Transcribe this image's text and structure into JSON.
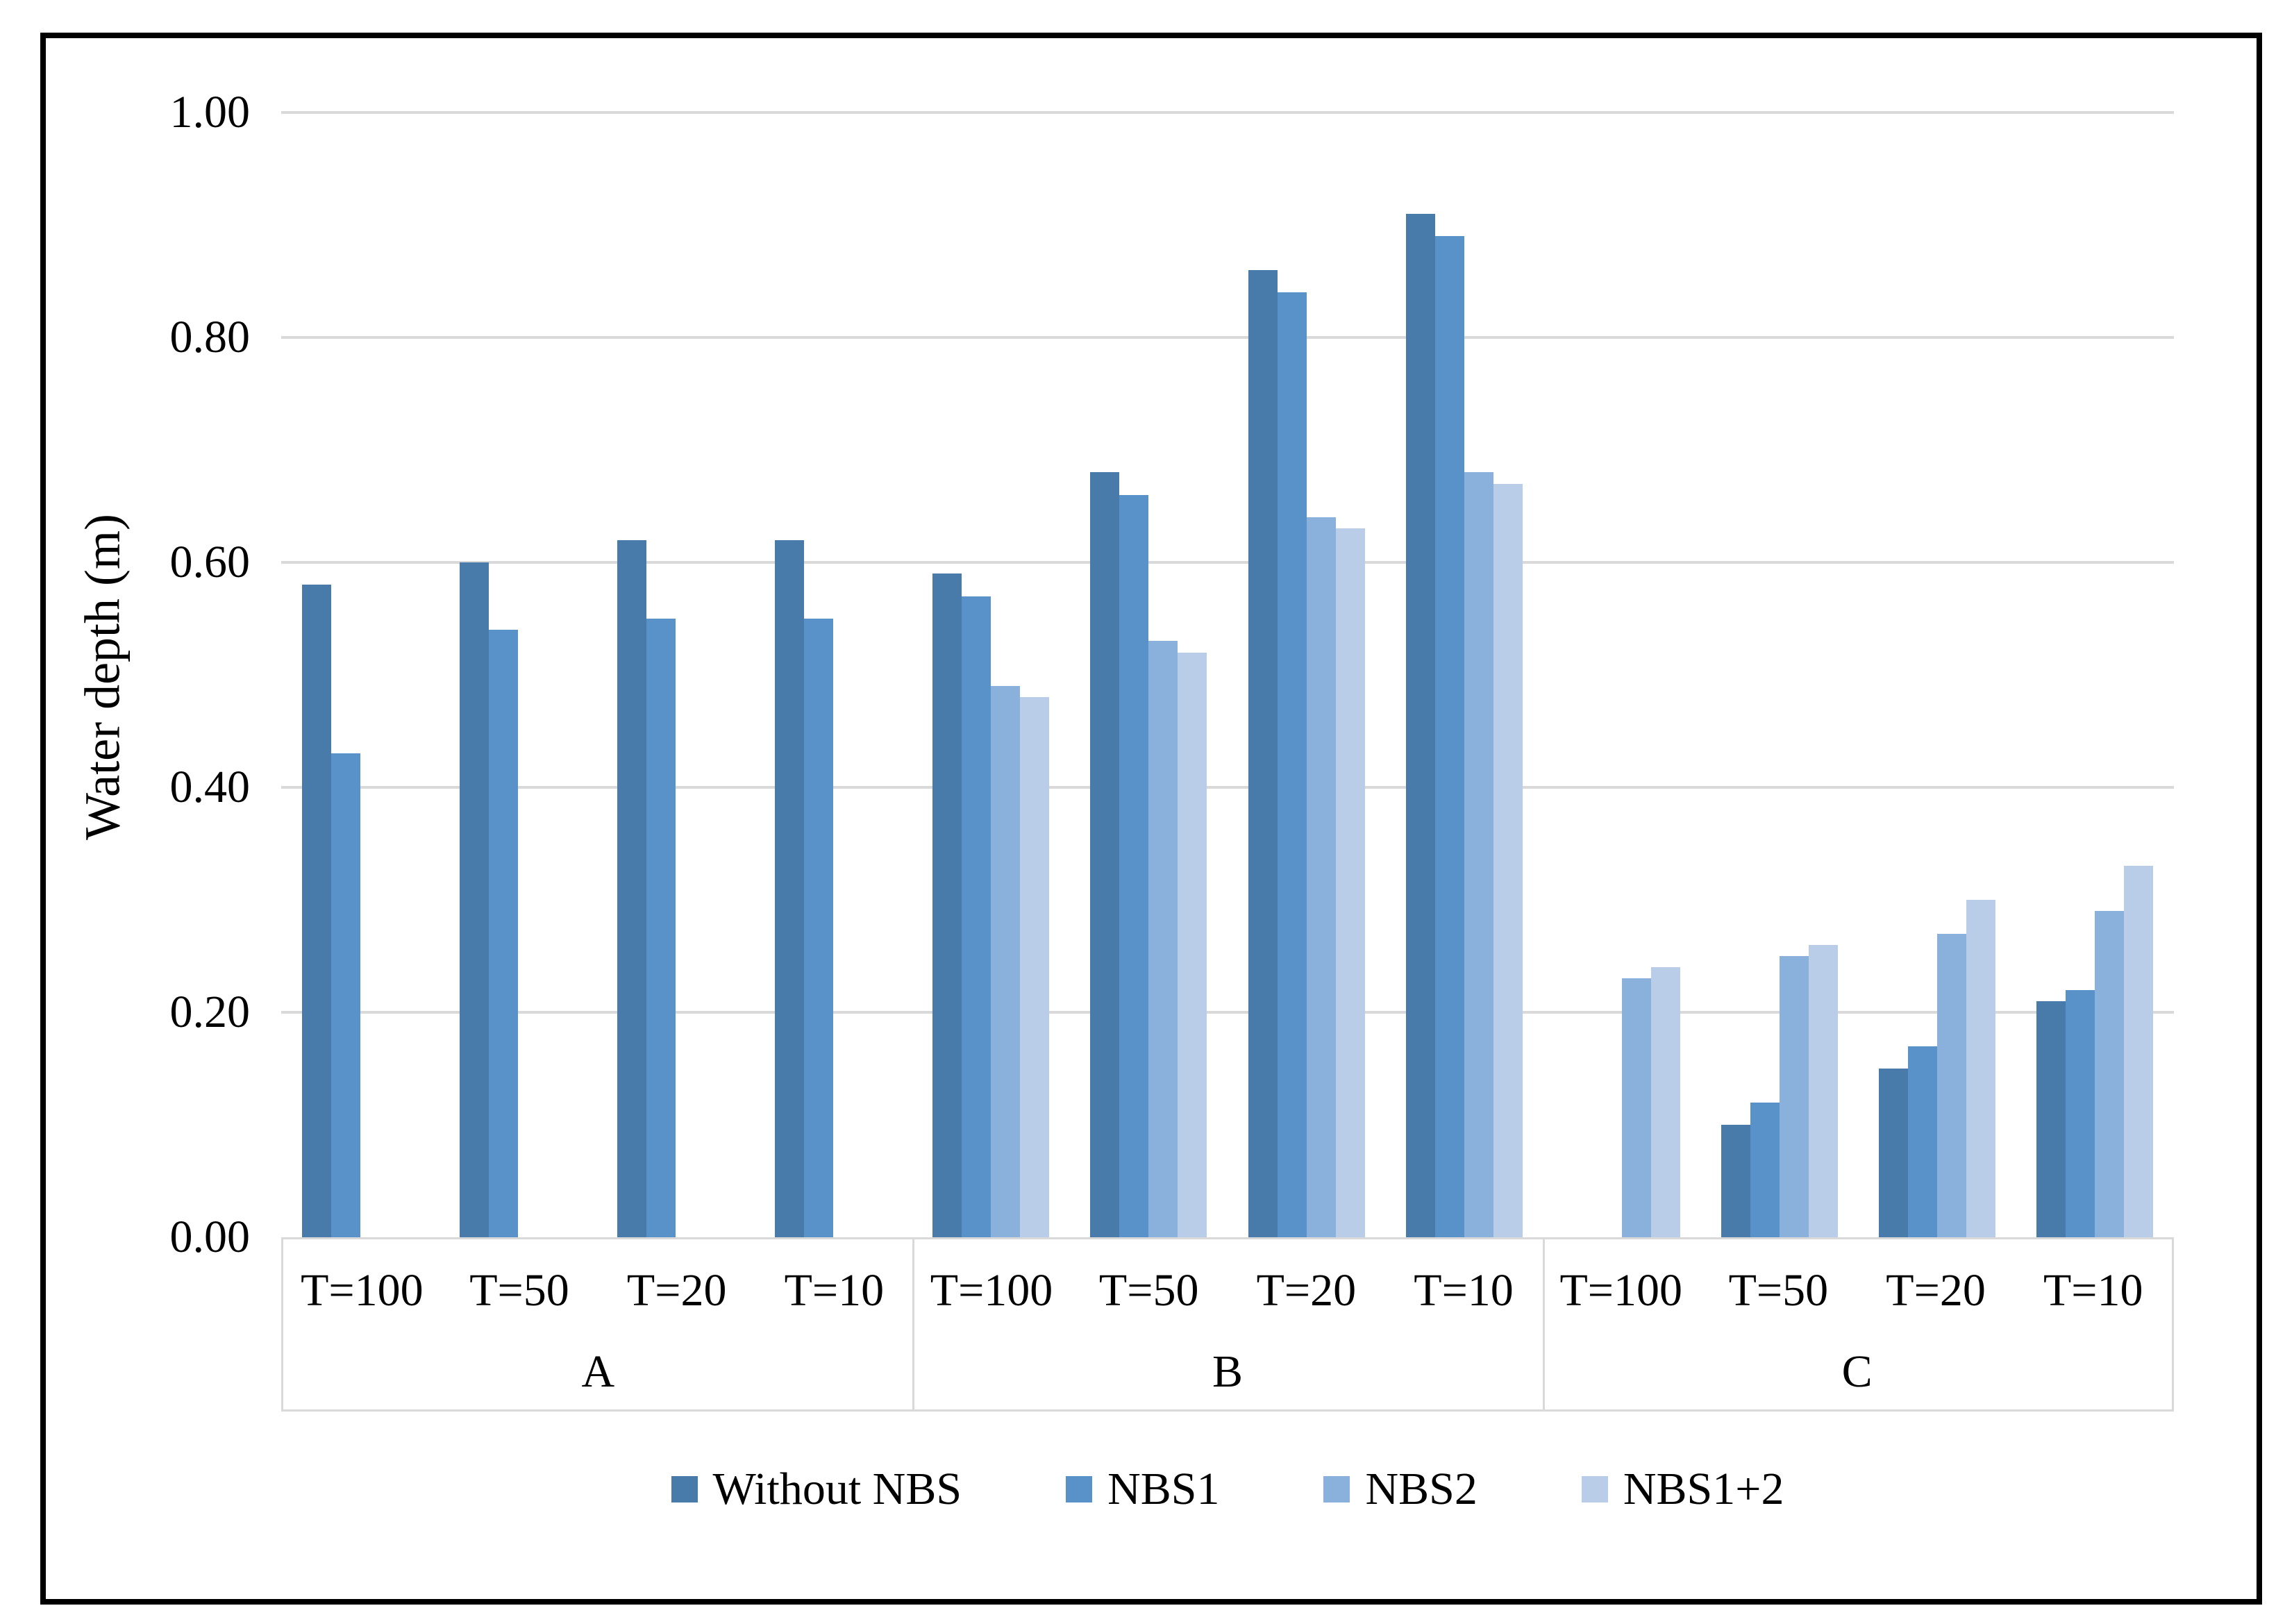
{
  "chart_data": {
    "type": "bar",
    "title": "",
    "ylabel": "Water depth (m)",
    "xlabel": "",
    "ylim": [
      0,
      1.0
    ],
    "ytick_step": 0.2,
    "yticks": [
      "0.00",
      "0.20",
      "0.40",
      "0.60",
      "0.80",
      "1.00"
    ],
    "grid": true,
    "gridline_color": "#D9D9D9",
    "axis_box_color": "#D9D9D9",
    "frame_color": "#000000",
    "background_color": "#FFFFFF",
    "legend_position": "bottom",
    "groups": [
      "A",
      "B",
      "C"
    ],
    "categories_per_group": [
      "T=100",
      "T=50",
      "T=20",
      "T=10"
    ],
    "categories": [
      "T=100",
      "T=50",
      "T=20",
      "T=10",
      "T=100",
      "T=50",
      "T=20",
      "T=10",
      "T=100",
      "T=50",
      "T=20",
      "T=10"
    ],
    "series": [
      {
        "name": "Without NBS",
        "color": "#487AAA",
        "values": [
          0.58,
          0.6,
          0.62,
          0.62,
          0.59,
          0.68,
          0.86,
          0.91,
          null,
          0.1,
          0.15,
          0.21
        ]
      },
      {
        "name": "NBS1",
        "color": "#5892C8",
        "values": [
          0.43,
          0.54,
          0.55,
          0.55,
          0.57,
          0.66,
          0.84,
          0.89,
          null,
          0.12,
          0.17,
          0.22
        ]
      },
      {
        "name": "NBS2",
        "color": "#8AB0DC",
        "values": [
          null,
          null,
          null,
          null,
          0.49,
          0.53,
          0.64,
          0.68,
          0.23,
          0.25,
          0.27,
          0.29
        ]
      },
      {
        "name": "NBS1+2",
        "color": "#B9CCE8",
        "values": [
          null,
          null,
          null,
          null,
          0.48,
          0.52,
          0.63,
          0.67,
          0.24,
          0.26,
          0.3,
          0.33
        ]
      }
    ]
  }
}
